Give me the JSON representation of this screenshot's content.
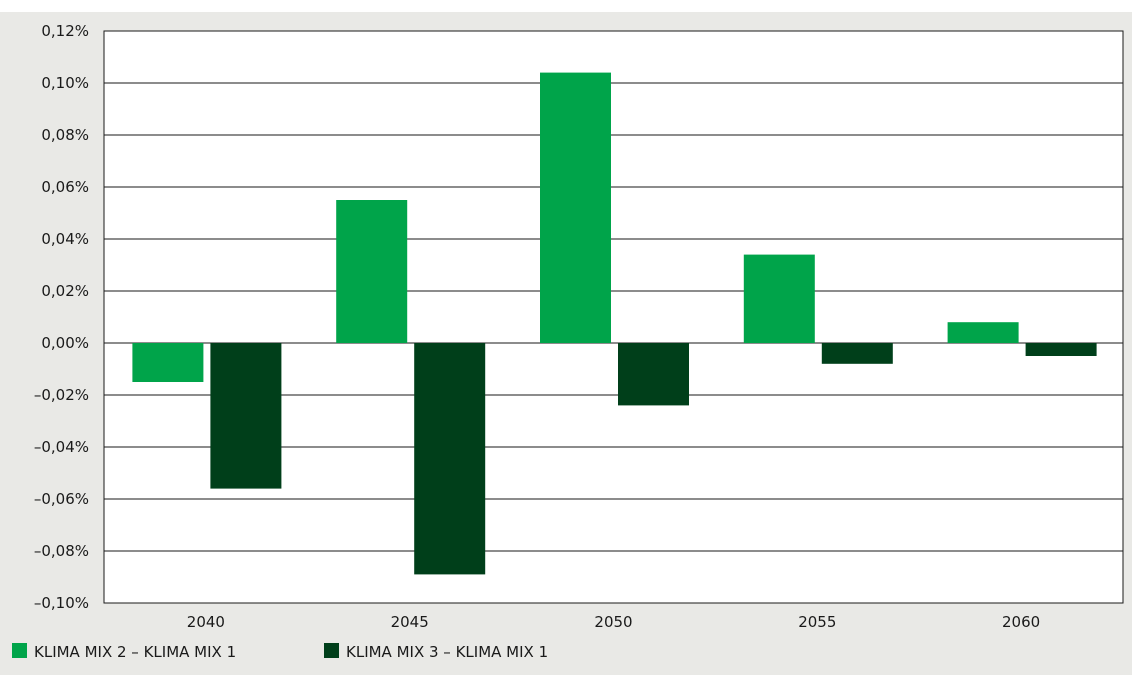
{
  "chart_data": {
    "type": "bar",
    "categories": [
      "2040",
      "2045",
      "2050",
      "2055",
      "2060"
    ],
    "series": [
      {
        "name": "KLIMA MIX 2 – KLIMA MIX 1",
        "color": "#00a44a",
        "values": [
          -0.015,
          0.055,
          0.104,
          0.034,
          0.008
        ]
      },
      {
        "name": "KLIMA MIX 3 – KLIMA MIX 1",
        "color": "#003f1a",
        "values": [
          -0.056,
          -0.089,
          -0.024,
          -0.008,
          -0.005
        ]
      }
    ],
    "y_ticks": [
      0.12,
      0.1,
      0.08,
      0.06,
      0.04,
      0.02,
      0.0,
      -0.02,
      -0.04,
      -0.06,
      -0.08,
      -0.1
    ],
    "y_tick_labels": [
      "0,12%",
      "0,10%",
      "0,08%",
      "0,06%",
      "0,04%",
      "0,02%",
      "0,00%",
      "–0,02%",
      "–0,04%",
      "–0,06%",
      "–0,08%",
      "–0,10%"
    ],
    "ylim": [
      -0.1,
      0.12
    ],
    "title": "",
    "xlabel": "",
    "ylabel": "",
    "grid": true,
    "legend_position": "bottom-left",
    "background_color": "#e9e9e6",
    "plot_background_color": "#ffffff"
  }
}
